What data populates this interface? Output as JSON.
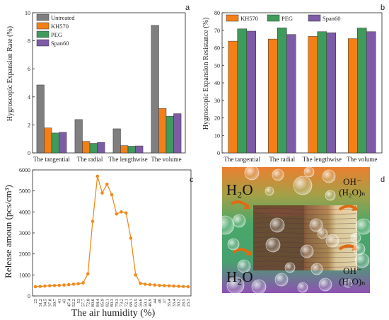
{
  "colors": {
    "untreated": "#7f7f7f",
    "kh570": "#f47f17",
    "peg": "#3f9a5b",
    "span60": "#7d5ba6",
    "line": "#f08a1c",
    "board_top": "#e9863a",
    "board_mid": "#4da66b",
    "board_bottom": "#8a58ad"
  },
  "chart_data": [
    {
      "panel": "a",
      "type": "bar",
      "ylabel": "Hygroscopic Expansion Rate (%)",
      "ylim": [
        0,
        10
      ],
      "yticks": [
        "0",
        "2",
        "4",
        "6",
        "8",
        "10"
      ],
      "categories": [
        "The tangential",
        "The radial",
        "The lengthwise",
        "The volume"
      ],
      "series": [
        {
          "name": "Untreated",
          "values": [
            4.85,
            2.38,
            1.72,
            9.1
          ]
        },
        {
          "name": "KH570",
          "values": [
            1.78,
            0.82,
            0.52,
            3.17
          ]
        },
        {
          "name": "PEG",
          "values": [
            1.42,
            0.68,
            0.48,
            2.62
          ]
        },
        {
          "name": "Span60",
          "values": [
            1.47,
            0.75,
            0.5,
            2.8
          ]
        }
      ],
      "legend": "top-right"
    },
    {
      "panel": "b",
      "type": "bar",
      "ylabel": "Hygroscopic Expansion Resistance (%)",
      "ylim": [
        0,
        80
      ],
      "yticks": [
        "0",
        "10",
        "20",
        "30",
        "40",
        "50",
        "60",
        "70",
        "80"
      ],
      "categories": [
        "The tangential",
        "The radial",
        "The lengthwise",
        "The volume"
      ],
      "series": [
        {
          "name": "KH570",
          "values": [
            63.8,
            65.0,
            66.5,
            65.2
          ]
        },
        {
          "name": "PEG",
          "values": [
            70.8,
            71.4,
            69.2,
            71.3
          ]
        },
        {
          "name": "Span60",
          "values": [
            69.5,
            67.6,
            68.6,
            69.2
          ]
        }
      ],
      "legend": "top"
    },
    {
      "panel": "c",
      "type": "line",
      "xlabel": "The air humidity (%)",
      "ylabel": "Release amoun (pcs/cm³)",
      "ylim": [
        0,
        6000
      ],
      "yticks": [
        "0",
        "1000",
        "2000",
        "3000",
        "4000",
        "5000",
        "6000"
      ],
      "x": [
        "25",
        "31.2",
        "34.5",
        "37.8",
        "39.7",
        "41",
        "43",
        "47.4",
        "52.2",
        "53",
        "57.7",
        "72.8",
        "80.6",
        "84.4",
        "85.9",
        "82.1",
        "80.3",
        "79.3",
        "73.2",
        "72.1",
        "68.1",
        "63.5",
        "56.6",
        "50.1",
        "46.9",
        "44",
        "40",
        "37",
        "35.4",
        "33.4",
        "30.2",
        "28.5",
        "25.3"
      ],
      "values": [
        440,
        455,
        470,
        485,
        495,
        505,
        520,
        540,
        560,
        580,
        620,
        1050,
        3550,
        5700,
        4900,
        5320,
        4820,
        3900,
        4000,
        3950,
        2750,
        1000,
        600,
        560,
        540,
        520,
        500,
        490,
        480,
        470,
        460,
        450,
        440
      ]
    }
  ],
  "panels": {
    "a": {
      "letter": "a"
    },
    "b": {
      "letter": "b"
    },
    "c": {
      "letter": "c"
    },
    "d": {
      "letter": "d",
      "h2o_top": "H₂O",
      "h2o_bottom": "H₂O",
      "oh_top": "OH⁻",
      "oh_top_sub": "(H₂O)ₙ",
      "oh_bottom": "OH⁻",
      "oh_bottom_sub": "(H₂O)ₙ"
    }
  }
}
